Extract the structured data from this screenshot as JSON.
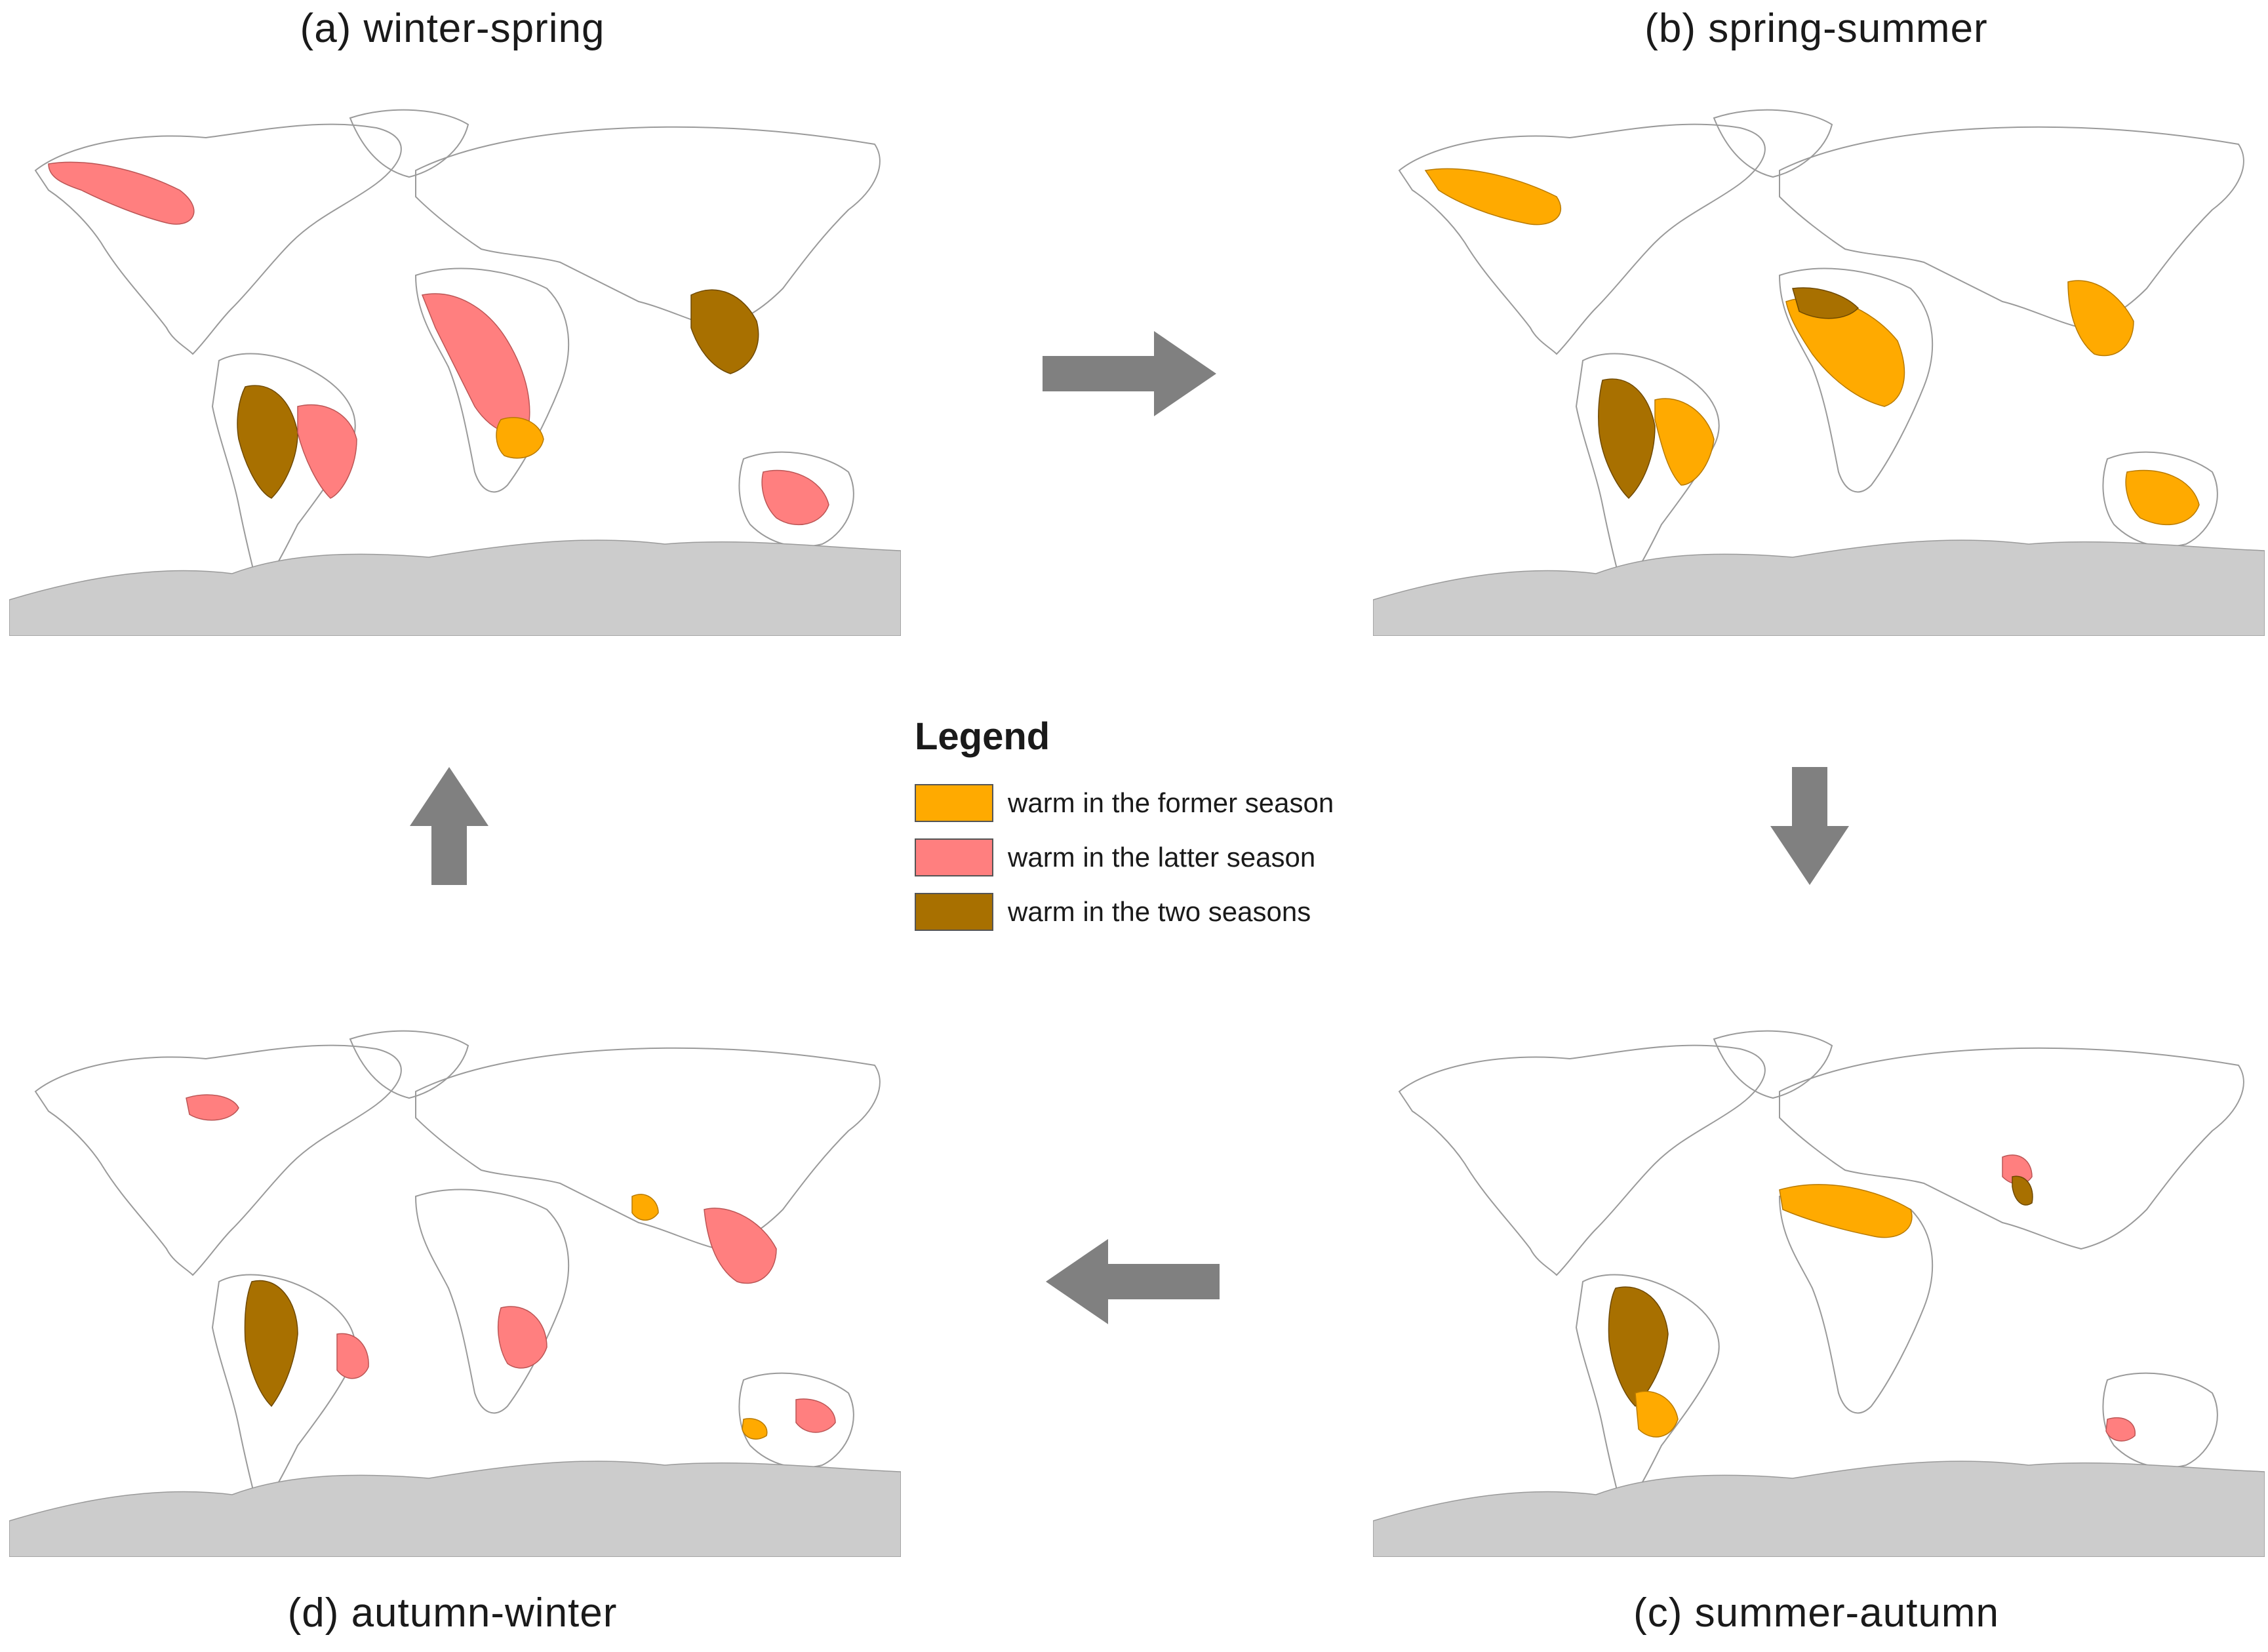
{
  "panels": {
    "a": {
      "title": "(a) winter-spring"
    },
    "b": {
      "title": "(b) spring-summer"
    },
    "c": {
      "title": "(c) summer-autumn"
    },
    "d": {
      "title": "(d) autumn-winter"
    }
  },
  "legend": {
    "title": "Legend",
    "items": [
      {
        "label": "warm in the former season",
        "color": "#ffaa00"
      },
      {
        "label": "warm in the latter season",
        "color": "#ff7f7f"
      },
      {
        "label": "warm in the two seasons",
        "color": "#a87000"
      }
    ]
  },
  "colors": {
    "land_outline": "#9a9a9a",
    "antarctica": "#cccccc",
    "arrow": "#808080"
  }
}
